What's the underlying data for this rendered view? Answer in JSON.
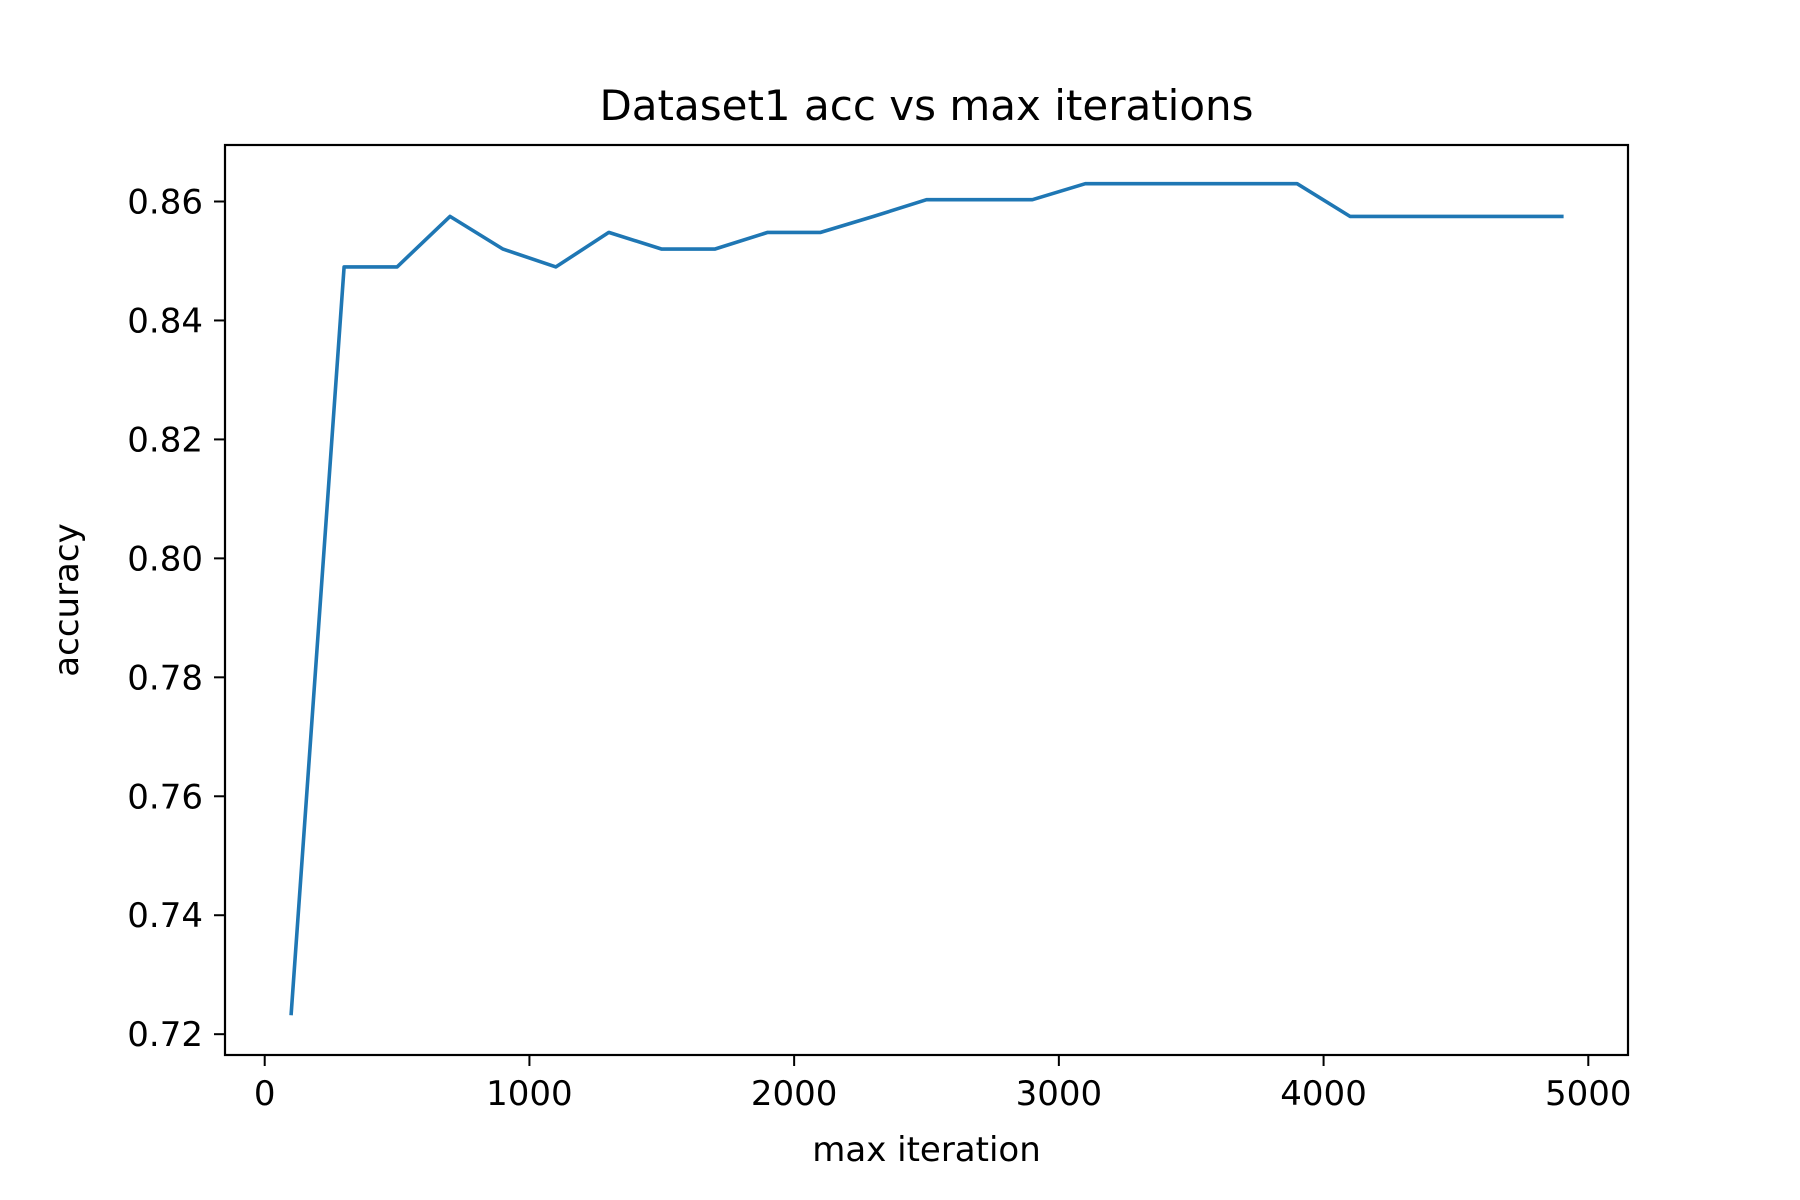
{
  "chart_data": {
    "type": "line",
    "title": "Dataset1 acc vs max iterations",
    "xlabel": "max iteration",
    "ylabel": "accuracy",
    "xlim": [
      -150,
      5150
    ],
    "ylim": [
      0.7165,
      0.8695
    ],
    "xticks": [
      0,
      1000,
      2000,
      3000,
      4000,
      5000
    ],
    "xtick_labels": [
      "0",
      "1000",
      "2000",
      "3000",
      "4000",
      "5000"
    ],
    "yticks": [
      0.72,
      0.74,
      0.76,
      0.78,
      0.8,
      0.82,
      0.84,
      0.86
    ],
    "ytick_labels": [
      "0.72",
      "0.74",
      "0.76",
      "0.78",
      "0.80",
      "0.82",
      "0.84",
      "0.86"
    ],
    "grid": false,
    "series": [
      {
        "color": "#1f77b4",
        "x": [
          100,
          300,
          500,
          700,
          900,
          1100,
          1300,
          1500,
          1700,
          1900,
          2100,
          2300,
          2500,
          2700,
          2900,
          3100,
          3300,
          3500,
          3700,
          3900,
          4100,
          4300,
          4500,
          4700,
          4900
        ],
        "y": [
          0.7235,
          0.849,
          0.849,
          0.8575,
          0.852,
          0.849,
          0.8548,
          0.852,
          0.852,
          0.8548,
          0.8548,
          0.8575,
          0.8603,
          0.8603,
          0.8603,
          0.863,
          0.863,
          0.863,
          0.863,
          0.863,
          0.8575,
          0.8575,
          0.8575,
          0.8575,
          0.8575
        ]
      }
    ]
  }
}
